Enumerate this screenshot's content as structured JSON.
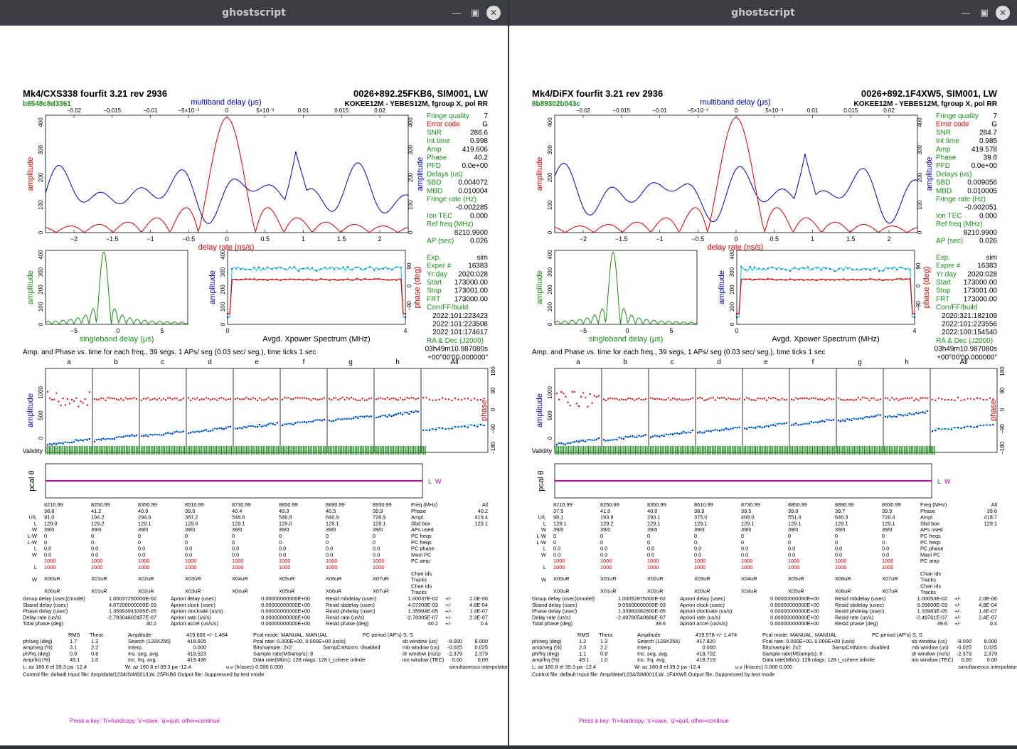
{
  "windows": [
    {
      "title": "ghostscript",
      "header": {
        "program": "Mk4/CXS338 fourfit 3.21 rev 2936",
        "source_line": "0026+892.25FKB6, SIM001, LW",
        "hash": "b6548c8d3361",
        "baseline": "KOKEE12M - YEBES12M, fgroup X, pol RR"
      },
      "top_axis_label": "multiband delay (μs)",
      "top_ticks": [
        "−0.02",
        "−0.015",
        "−0.01",
        "−5×10⁻³",
        "0",
        "5×10⁻³",
        "0.01",
        "0.015",
        "0.02"
      ],
      "bottom_ticks": [
        "−2",
        "−1.5",
        "−1",
        "−0.5",
        "0",
        "0.5",
        "1",
        "1.5",
        "2"
      ],
      "bottom_axis_label": "delay rate (ns/s)",
      "amp_label": "amplitude",
      "amp_ticks": [
        "0",
        "100",
        "200",
        "300",
        "400"
      ],
      "sbd_label": "singleband delay (μs)",
      "sbd_ticks": [
        "−5",
        "0",
        "5"
      ],
      "xp_label": "Avgd. Xpower Spectrum (MHz)",
      "xp_ticks": [
        "0",
        "4"
      ],
      "phase_label": "phase (deg)",
      "phase_ticks": [
        "90",
        "0",
        "−90"
      ],
      "info": [
        {
          "k": "Fringe quality",
          "v": "7",
          "c": "#1a8a1a"
        },
        {
          "k": "Error code",
          "v": "G",
          "c": "#cc0000"
        },
        {
          "k": "SNR",
          "v": "286.6"
        },
        {
          "k": "Int time",
          "v": "0.998"
        },
        {
          "k": "Amp",
          "v": "419.606"
        },
        {
          "k": "Phase",
          "v": "40.2"
        },
        {
          "k": "PFD",
          "v": "0.0e+00"
        },
        {
          "k": "Delays (us)",
          "v": ""
        },
        {
          "k": "SBD",
          "v": "0.004072"
        },
        {
          "k": "MBD",
          "v": "0.010004"
        },
        {
          "k": "Fringe rate (Hz)",
          "v": ""
        },
        {
          "k": "",
          "v": "-0.002285"
        },
        {
          "k": "Ion TEC",
          "v": "0.000"
        },
        {
          "k": "Ref freq (MHz)",
          "v": ""
        },
        {
          "k": "",
          "v": "8210.9900"
        },
        {
          "k": "AP (sec)",
          "v": "0.026"
        },
        {
          "k": "",
          "v": ""
        },
        {
          "k": "Exp.",
          "v": "sim"
        },
        {
          "k": "Exper #",
          "v": "16383"
        },
        {
          "k": "Yr:day",
          "v": "2020:028"
        },
        {
          "k": "Start",
          "v": "173000.00"
        },
        {
          "k": "Stop",
          "v": "173001.00"
        },
        {
          "k": "FRT",
          "v": "173000.00"
        },
        {
          "k": "Corr/FF/build",
          "v": ""
        },
        {
          "k": "",
          "v": "2022:101:223423"
        },
        {
          "k": "",
          "v": "2022:101:223508"
        },
        {
          "k": "",
          "v": "2022:101:174617"
        },
        {
          "k": "RA & Dec (J2000)",
          "v": ""
        },
        {
          "k": "",
          "v": "03h49m10.987080s"
        },
        {
          "k": "",
          "v": "+00°00'00.000000\""
        }
      ],
      "segs_title": "Amp. and Phase vs. time for each freq., 39 segs, 1 APs/ seg (0.03 sec/ seg.), time ticks 1 sec",
      "channels": [
        "a",
        "b",
        "c",
        "d",
        "e",
        "f",
        "g",
        "h",
        "All"
      ],
      "amp_seg_ticks": [
        "0",
        "500",
        "1000"
      ],
      "phase_seg_ticks": [
        "180",
        "90",
        "0",
        "−90",
        "−180"
      ],
      "validity_label": "Validity",
      "pcal_label": "pcal θ",
      "pcal_legend": [
        "L",
        "W"
      ],
      "freq_cols": [
        "8210.99",
        "8250.99",
        "8350.99",
        "8510.99",
        "8730.99",
        "8850.99",
        "8890.99",
        "8930.99"
      ],
      "phase_row": [
        "38.8",
        "41.2",
        "40.9",
        "39.0",
        "40.4",
        "40.3",
        "40.5",
        "39.9"
      ],
      "ampl_row": [
        "91.0",
        "194.2",
        "294.6",
        "387.2",
        "548.6",
        "546.8",
        "640.9",
        "728.9"
      ],
      "sbd_row": [
        "129.0",
        "129.2",
        "129.1",
        "129.0",
        "129.1",
        "129.0",
        "129.1",
        "129.1"
      ],
      "ap_row": [
        "39/0",
        "39/0",
        "39/0",
        "39/0",
        "39/0",
        "39/0",
        "39/0",
        "39/0"
      ],
      "chan_row": [
        "X00uR",
        "X01uR",
        "X02uR",
        "X03uR",
        "X04uR",
        "X05uR",
        "X06uR",
        "X07uR"
      ],
      "table_right": {
        "freq": "All",
        "phase": "40.2",
        "ampl": "419.4",
        "sbd": "129.1"
      },
      "row_names": [
        "Freq (MHz)",
        "Phase",
        "Ampl.",
        "Sbd box",
        "APs used",
        "PC freqs",
        "PC freqs",
        "PC phase",
        "Manl PC",
        "PC amp",
        "",
        "Chan ids",
        "Tracks",
        "Chan ids",
        "Tracks"
      ],
      "stats": {
        "group_delay": "1.00037250000E-02",
        "sband_delay": "4.07200000000E-03",
        "phase_delay": "1.35993943395E-05",
        "delay_rate": "-2.78304602457E-07",
        "total_phase": "40.2",
        "resid_mb": "1.00037E-02",
        "resid_mb_err": "2.0E-06",
        "resid_sb": "4.07200E-03",
        "resid_sb_err": "4.8E-04",
        "resid_ph": "1.35994E-05",
        "resid_ph_err": "1.4E-07",
        "resid_rate": "-2.78305E-07",
        "resid_rate_err": "2.3E-07",
        "resid_phase": "40.2",
        "resid_phase_err": "0.4",
        "amp_val": "419.606 +/- 1.464",
        "search": "418.605",
        "interp": "0.000",
        "inc_seg": "419.523",
        "inc_frq": "419.436",
        "rms1": [
          "1.7",
          "3.1",
          "0.9",
          "49.1"
        ],
        "theor1": [
          "1.2",
          "2.2",
          "0.8",
          "1.0"
        ],
        "sbw": "-8.000",
        "sbw2": "8.000",
        "mbw": "-0.025",
        "mbw2": "0.025",
        "drw": "-2.379",
        "drw2": "2.379",
        "ionw": "0.00",
        "ionw2": "0.00",
        "pcal_period": "S, S",
        "rate_line": "Pcal rate: 0.000E+00, 0.000E+00 (us/s)",
        "bits": "Bits/sample: 2x2",
        "sample_rate": "Sample rate(MSamp/s): 8",
        "data_rate": "Data rate(Mb/s): 128",
        "nlags": "nlags: 128",
        "tcohere": "t_cohere infinite",
        "az_l": "L: az 160.8  el 39.3  pa -12.4",
        "az_w": "W: az 160.8  el 39.3  pa -12.4",
        "uv": "u,v (fr/asec) 0.000  0.000",
        "interp_mode": "simultaneous interpolator",
        "control": "Control file: default    Input file: /tmp/data/1234/SIM001/LW..25FKB6    Output file: Suppressed by test mode"
      },
      "prompt": "Press a key: 'h'=hardcopy, 's'=save, 'q'=quit, other=continue"
    },
    {
      "title": "ghostscript",
      "header": {
        "program": "Mk4/DiFX fourfit 3.21 rev 2936",
        "source_line": "0026+892.1F4XW5, SIM001, LW",
        "hash": "8b89302b043c",
        "baseline": "KOKEE12M - YEBES12M, fgroup X, pol RR"
      },
      "top_axis_label": "multiband delay (μs)",
      "top_ticks": [
        "−0.02",
        "−0.015",
        "−0.01",
        "−5×10⁻³",
        "0",
        "5×10⁻³",
        "0.01",
        "0.015",
        "0.02"
      ],
      "bottom_ticks": [
        "−2",
        "−1.5",
        "−1",
        "−0.5",
        "0",
        "0.5",
        "1",
        "1.5",
        "2"
      ],
      "bottom_axis_label": "delay rate (ns/s)",
      "amp_label": "amplitude",
      "amp_ticks": [
        "0",
        "100",
        "200",
        "300",
        "400"
      ],
      "sbd_label": "singleband delay (μs)",
      "sbd_ticks": [
        "−5",
        "0",
        "5"
      ],
      "xp_label": "Avgd. Xpower Spectrum (MHz)",
      "xp_ticks": [
        "0",
        "4"
      ],
      "phase_label": "phase (deg)",
      "phase_ticks": [
        "90",
        "0",
        "−90"
      ],
      "info": [
        {
          "k": "Fringe quality",
          "v": "7",
          "c": "#1a8a1a"
        },
        {
          "k": "Error code",
          "v": "G",
          "c": "#cc0000"
        },
        {
          "k": "SNR",
          "v": "284.7"
        },
        {
          "k": "Int time",
          "v": "0.985"
        },
        {
          "k": "Amp",
          "v": "419.578"
        },
        {
          "k": "Phase",
          "v": "39.6"
        },
        {
          "k": "PFD",
          "v": "0.0e+00"
        },
        {
          "k": "Delays (us)",
          "v": ""
        },
        {
          "k": "SBD",
          "v": "0.009056"
        },
        {
          "k": "MBD",
          "v": "0.010005"
        },
        {
          "k": "Fringe rate (Hz)",
          "v": ""
        },
        {
          "k": "",
          "v": "-0.002051"
        },
        {
          "k": "Ion TEC",
          "v": "0.000"
        },
        {
          "k": "Ref freq (MHz)",
          "v": ""
        },
        {
          "k": "",
          "v": "8210.9900"
        },
        {
          "k": "AP (sec)",
          "v": "0.026"
        },
        {
          "k": "",
          "v": ""
        },
        {
          "k": "Exp.",
          "v": "sim"
        },
        {
          "k": "Exper #",
          "v": "16383"
        },
        {
          "k": "Yr:day",
          "v": "2020:028"
        },
        {
          "k": "Start",
          "v": "173000.00"
        },
        {
          "k": "Stop",
          "v": "173001.00"
        },
        {
          "k": "FRT",
          "v": "173000.00"
        },
        {
          "k": "Corr/FF/build",
          "v": ""
        },
        {
          "k": "",
          "v": "2020:321:182109"
        },
        {
          "k": "",
          "v": "2022:101:223556"
        },
        {
          "k": "",
          "v": "2022:100:154540"
        },
        {
          "k": "RA & Dec (J2000)",
          "v": ""
        },
        {
          "k": "",
          "v": "03h49m10.987080s"
        },
        {
          "k": "",
          "v": "+00°00'00.000000\""
        }
      ],
      "segs_title": "Amp. and Phase vs. time for each freq., 39 segs, 1 APs/ seg (0.03 sec/ seg.), time ticks 1 sec",
      "channels": [
        "a",
        "b",
        "c",
        "d",
        "e",
        "f",
        "g",
        "h",
        "All"
      ],
      "amp_seg_ticks": [
        "0",
        "500",
        "1000"
      ],
      "phase_seg_ticks": [
        "180",
        "90",
        "0",
        "−90",
        "−180"
      ],
      "validity_label": "Validity",
      "pcal_label": "pcal θ",
      "pcal_legend": [
        "L",
        "W"
      ],
      "freq_cols": [
        "8210.99",
        "8250.99",
        "8350.99",
        "8510.99",
        "8730.99",
        "8850.99",
        "8890.99",
        "8930.99"
      ],
      "phase_row": [
        "37.5",
        "41.0",
        "40.0",
        "38.9",
        "39.5",
        "39.9",
        "39.7",
        "39.5"
      ],
      "ampl_row": [
        "98.1",
        "193.8",
        "293.1",
        "375.0",
        "468.0",
        "551.4",
        "646.3",
        "728.4"
      ],
      "sbd_row": [
        "129.1",
        "129.2",
        "129.1",
        "129.1",
        "129.1",
        "129.1",
        "129.1",
        "129.1"
      ],
      "ap_row": [
        "39/0",
        "39/0",
        "39/0",
        "39/0",
        "39/0",
        "39/0",
        "39/0",
        "39/0"
      ],
      "chan_row": [
        "X00uR",
        "X01uR",
        "X02uR",
        "X03uR",
        "X04uR",
        "X05uR",
        "X06uR",
        "X07uR"
      ],
      "table_right": {
        "freq": "All",
        "phase": "39.6",
        "ampl": "418.7",
        "sbd": "129.1"
      },
      "row_names": [
        "Freq (MHz)",
        "Phase",
        "Ampl.",
        "Sbd box",
        "APs used",
        "PC freqs",
        "PC freqs",
        "PC phase",
        "Manl PC",
        "PC amp",
        "",
        "Chan ids",
        "Tracks",
        "Chan ids",
        "Tracks"
      ],
      "stats": {
        "group_delay": "1.00052875000E-02",
        "sband_delay": "9.05600000000E-03",
        "phase_delay": "1.33983382800E-05",
        "delay_rate": "-2.49760540686E-07",
        "total_phase": "39.6",
        "resid_mb": "1.00053E-02",
        "resid_mb_err": "2.0E-06",
        "resid_sb": "9.05600E-03",
        "resid_sb_err": "4.8E-04",
        "resid_ph": "1.33983E-05",
        "resid_ph_err": "1.4E-07",
        "resid_rate": "-2.49761E-07",
        "resid_rate_err": "2.4E-07",
        "resid_phase": "39.6",
        "resid_phase_err": "0.4",
        "amp_val": "419.578 +/- 1.474",
        "search": "417.820",
        "interp": "0.000",
        "inc_seg": "418.702",
        "inc_frq": "418.719",
        "rms1": [
          "1.2",
          "2.3",
          "1.1",
          "49.1"
        ],
        "theor1": [
          "1.3",
          "2.2",
          "0.8",
          "1.0"
        ],
        "sbw": "-8.000",
        "sbw2": "8.000",
        "mbw": "-0.025",
        "mbw2": "0.025",
        "drw": "-2.379",
        "drw2": "2.379",
        "ionw": "0.00",
        "ionw2": "0.00",
        "pcal_period": "S, S",
        "rate_line": "Pcal rate: 0.000E+00, 0.000E+00 (us/s)",
        "bits": "Bits/sample: 2x2",
        "sample_rate": "Sample rate(MSamp/s): 8",
        "data_rate": "Data rate(Mb/s): 128",
        "nlags": "nlags: 128",
        "tcohere": "t_cohere infinite",
        "az_l": "L: az 160.8  el 39.3  pa -12.4",
        "az_w": "W: az 160.8  el 39.3  pa -12.4",
        "uv": "u,v (fr/asec) 0.000  0.000",
        "interp_mode": "simultaneous interpolator",
        "control": "Control file: default    Input file: /tmp/data/1234/SIM001/LW..1F4XW5    Output file: Suppressed by test mode"
      },
      "prompt": "Press a key: 'h'=hardcopy, 's'=save, 'q'=quit, other=continue"
    }
  ],
  "colors": {
    "blue": "#0000b0",
    "red": "#cc0000",
    "green": "#1a8a1a",
    "cyan": "#00c0e0",
    "magenta": "#c000c0",
    "titlebar": "#3b3f44"
  }
}
